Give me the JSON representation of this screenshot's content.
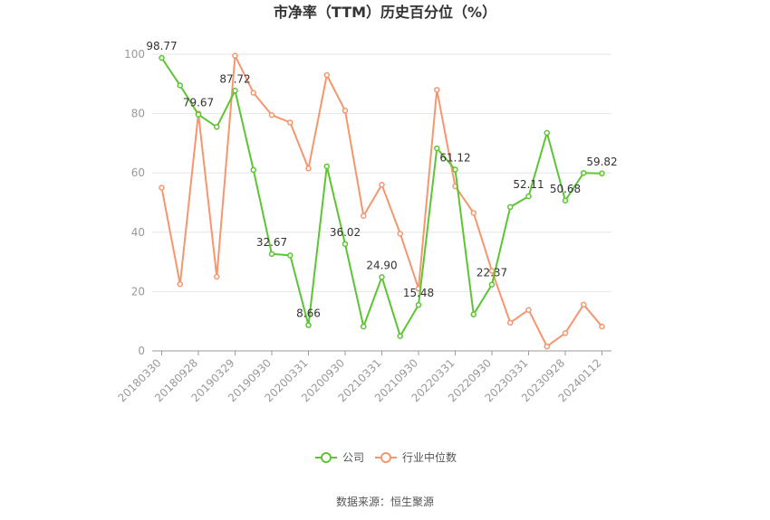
{
  "chart_data": {
    "type": "line",
    "title": "市净率（TTM）历史百分位（%）",
    "xlabel": "",
    "ylabel": "",
    "ylim": [
      0,
      100
    ],
    "yticks": [
      0,
      20,
      40,
      60,
      80,
      100
    ],
    "grid": true,
    "legend_position": "bottom",
    "x": [
      "20180330",
      "20180630",
      "20180928",
      "20181228",
      "20190329",
      "20190628",
      "20190930",
      "20191231",
      "20200331",
      "20200630",
      "20200930",
      "20201231",
      "20210331",
      "20210630",
      "20210930",
      "20211231",
      "20220331",
      "20220630",
      "20220930",
      "20221230",
      "20230331",
      "20230630",
      "20230928",
      "20231229",
      "20240112"
    ],
    "xtick_labels": [
      "20180330",
      "20180928",
      "20190329",
      "20190930",
      "20200331",
      "20200930",
      "20210331",
      "20210930",
      "20220331",
      "20220930",
      "20230331",
      "20230928",
      "20240112"
    ],
    "series": [
      {
        "name": "公司",
        "color": "#5cc531",
        "values": [
          98.77,
          89.5,
          79.67,
          75.5,
          87.72,
          61.0,
          32.67,
          32.2,
          8.66,
          62.2,
          36.02,
          8.2,
          24.9,
          5.0,
          15.48,
          68.3,
          61.12,
          12.3,
          22.37,
          48.5,
          52.11,
          73.5,
          50.68,
          60.0,
          59.82
        ],
        "data_labels": [
          {
            "index": 0,
            "text": "98.77"
          },
          {
            "index": 2,
            "text": "79.67"
          },
          {
            "index": 4,
            "text": "87.72"
          },
          {
            "index": 6,
            "text": "32.67"
          },
          {
            "index": 8,
            "text": "8.66"
          },
          {
            "index": 10,
            "text": "36.02"
          },
          {
            "index": 12,
            "text": "24.90"
          },
          {
            "index": 14,
            "text": "15.48"
          },
          {
            "index": 16,
            "text": "61.12"
          },
          {
            "index": 18,
            "text": "22.37"
          },
          {
            "index": 20,
            "text": "52.11"
          },
          {
            "index": 22,
            "text": "50.68"
          },
          {
            "index": 24,
            "text": "59.82"
          }
        ]
      },
      {
        "name": "行业中位数",
        "color": "#f5966e",
        "values": [
          55.0,
          22.5,
          80.0,
          25.0,
          99.5,
          87.0,
          79.5,
          77.0,
          61.5,
          93.0,
          81.0,
          45.5,
          56.0,
          39.5,
          21.0,
          88.0,
          55.5,
          46.5,
          27.0,
          9.5,
          13.8,
          1.5,
          6.0,
          15.6,
          8.2
        ]
      }
    ]
  },
  "source": "数据来源：恒生聚源"
}
